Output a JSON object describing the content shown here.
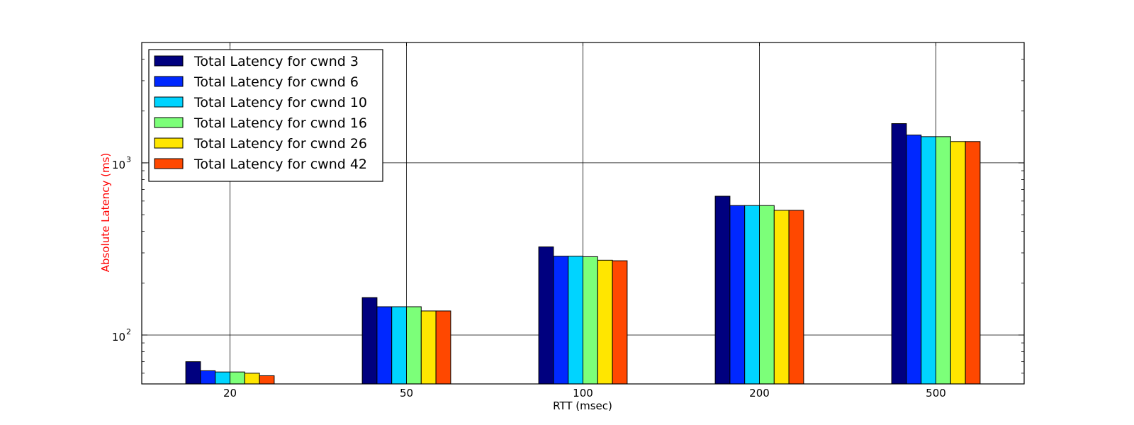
{
  "chart_data": {
    "type": "bar",
    "xlabel": "RTT (msec)",
    "ylabel": "Absolute Latency (ms)",
    "ylabel_color": "#ff0000",
    "yscale": "log",
    "ylim": [
      52,
      5000
    ],
    "yticks": [
      {
        "value": 100,
        "base": "10",
        "exp": "2"
      },
      {
        "value": 1000,
        "base": "10",
        "exp": "3"
      }
    ],
    "grid": true,
    "legend_position": "upper-left",
    "categories": [
      "20",
      "50",
      "100",
      "200",
      "500"
    ],
    "series": [
      {
        "name": "Total Latency for cwnd 3",
        "color": "#00007f",
        "values": [
          70,
          165,
          325,
          640,
          1690
        ]
      },
      {
        "name": "Total Latency for cwnd 6",
        "color": "#0028ff",
        "values": [
          62,
          146,
          287,
          565,
          1450
        ]
      },
      {
        "name": "Total Latency for cwnd 10",
        "color": "#00d4ff",
        "values": [
          61,
          146,
          287,
          565,
          1420
        ]
      },
      {
        "name": "Total Latency for cwnd 16",
        "color": "#7cff79",
        "values": [
          61,
          146,
          285,
          565,
          1420
        ]
      },
      {
        "name": "Total Latency for cwnd 26",
        "color": "#ffe600",
        "values": [
          60,
          138,
          272,
          530,
          1330
        ]
      },
      {
        "name": "Total Latency for cwnd 42",
        "color": "#ff4800",
        "values": [
          58,
          138,
          270,
          530,
          1330
        ]
      }
    ]
  }
}
